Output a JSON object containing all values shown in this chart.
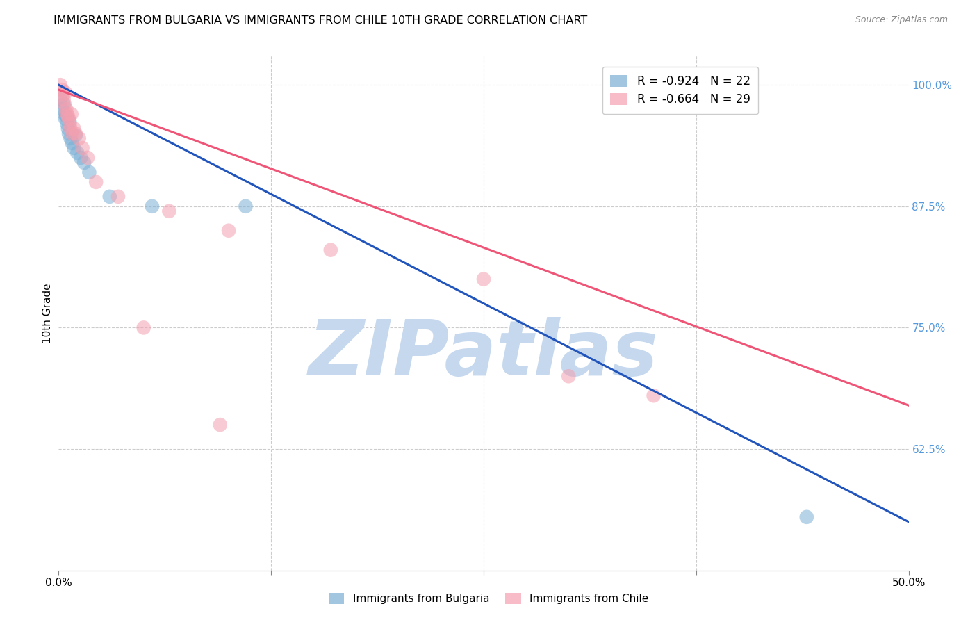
{
  "title": "IMMIGRANTS FROM BULGARIA VS IMMIGRANTS FROM CHILE 10TH GRADE CORRELATION CHART",
  "source": "Source: ZipAtlas.com",
  "ylabel": "10th Grade",
  "ylabel_right_ticks": [
    100.0,
    87.5,
    75.0,
    62.5
  ],
  "ylabel_right_labels": [
    "100.0%",
    "87.5%",
    "75.0%",
    "62.5%"
  ],
  "xlim": [
    0.0,
    50.0
  ],
  "ylim": [
    50.0,
    103.0
  ],
  "legend_bulgaria": "R = -0.924   N = 22",
  "legend_chile": "R = -0.664   N = 29",
  "bulgaria_color": "#7BAFD4",
  "chile_color": "#F4A0B0",
  "blue_line_color": "#2255BB",
  "pink_line_color": "#EE5577",
  "watermark": "ZIPatlas",
  "watermark_color": "#C5D8EE",
  "grid_color": "#CCCCCC",
  "right_tick_color": "#5599DD",
  "bulgaria_x": [
    0.1,
    0.2,
    0.3,
    0.35,
    0.4,
    0.45,
    0.5,
    0.55,
    0.6,
    0.65,
    0.7,
    0.8,
    0.9,
    1.0,
    1.1,
    1.3,
    1.5,
    1.8,
    3.0,
    5.5,
    11.0,
    44.0
  ],
  "bulgaria_y": [
    98.5,
    97.5,
    98.0,
    97.0,
    96.5,
    96.8,
    96.0,
    95.5,
    95.0,
    96.2,
    94.5,
    94.0,
    93.5,
    94.8,
    93.0,
    92.5,
    92.0,
    91.0,
    88.5,
    87.5,
    87.5,
    55.5
  ],
  "chile_x": [
    0.1,
    0.2,
    0.25,
    0.3,
    0.35,
    0.4,
    0.45,
    0.5,
    0.55,
    0.6,
    0.65,
    0.7,
    0.75,
    0.8,
    0.9,
    1.0,
    1.2,
    1.4,
    1.7,
    2.2,
    3.5,
    5.0,
    6.5,
    10.0,
    16.0,
    25.0,
    30.0,
    35.0,
    9.5
  ],
  "chile_y": [
    100.0,
    99.5,
    99.0,
    98.5,
    98.0,
    99.2,
    97.5,
    97.0,
    96.8,
    96.5,
    96.0,
    95.5,
    97.0,
    95.0,
    95.5,
    95.0,
    94.5,
    93.5,
    92.5,
    90.0,
    88.5,
    75.0,
    87.0,
    85.0,
    83.0,
    80.0,
    70.0,
    68.0,
    65.0
  ],
  "blue_line_x0": 0.0,
  "blue_line_y0": 100.0,
  "blue_line_x1": 50.0,
  "blue_line_y1": 55.0,
  "pink_line_x0": 0.0,
  "pink_line_y0": 99.5,
  "pink_line_x1": 50.0,
  "pink_line_y1": 67.0
}
